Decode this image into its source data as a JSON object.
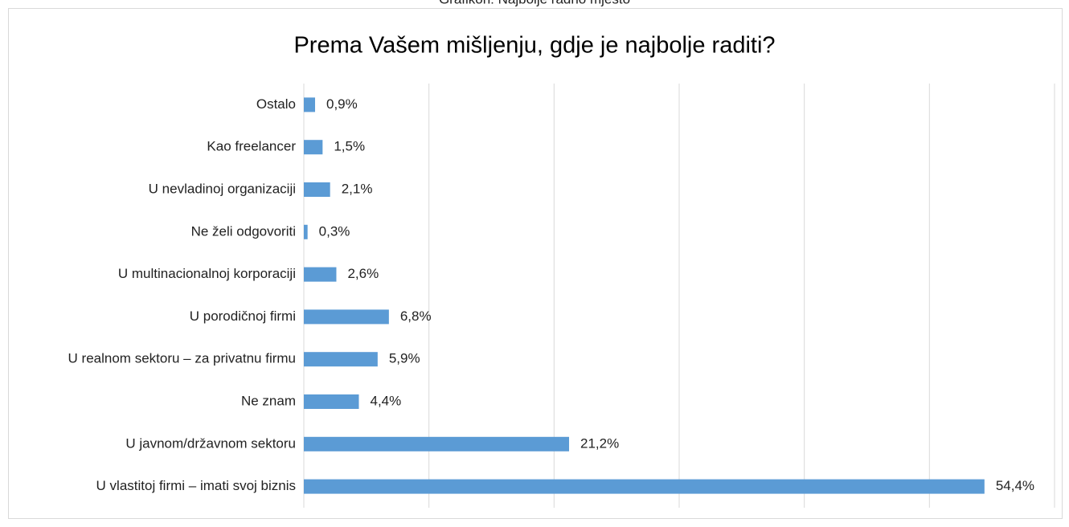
{
  "caption": "Grafikon: Najbolje radno mjesto",
  "chart_data": {
    "type": "barh",
    "title": "Prema Vašem mišljenju, gdje je najbolje raditi?",
    "categories": [
      "Ostalo",
      "Kao freelancer",
      "U nevladinoj organizaciji",
      "Ne želi odgovoriti",
      "U multinacionalnoj korporaciji",
      "U porodičnoj firmi",
      "U realnom sektoru – za privatnu firmu",
      "Ne znam",
      "U javnom/državnom sektoru",
      "U vlastitoj firmi – imati svoj biznis"
    ],
    "values": [
      0.9,
      1.5,
      2.1,
      0.3,
      2.6,
      6.8,
      5.9,
      4.4,
      21.2,
      54.4
    ],
    "value_labels": [
      "0,9%",
      "1,5%",
      "2,1%",
      "0,3%",
      "2,6%",
      "6,8%",
      "5,9%",
      "4,4%",
      "21,2%",
      "54,4%"
    ],
    "color": "#5b9bd5",
    "xlim": [
      0,
      60
    ],
    "xticks": [
      0,
      10,
      20,
      30,
      40,
      50,
      60
    ],
    "grid": true
  }
}
